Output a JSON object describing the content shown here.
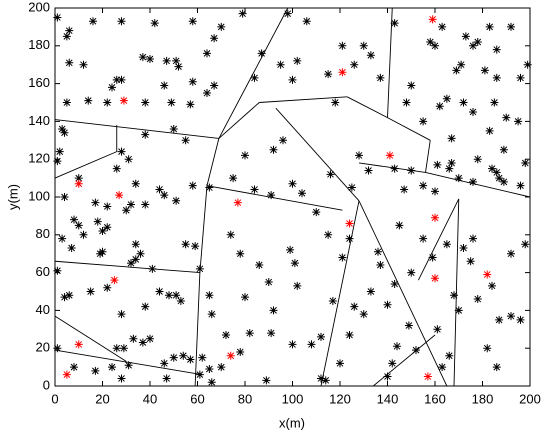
{
  "chart_data": {
    "type": "scatter",
    "xlabel": "x(m)",
    "ylabel": "y(m)",
    "xlim": [
      0,
      200
    ],
    "ylim": [
      0,
      200
    ],
    "xticks": [
      0,
      20,
      40,
      60,
      80,
      100,
      120,
      140,
      160,
      180,
      200
    ],
    "yticks": [
      0,
      20,
      40,
      60,
      80,
      100,
      120,
      140,
      160,
      180,
      200
    ],
    "series": [
      {
        "color": "#000000",
        "x": [
          1,
          6,
          5,
          16,
          28,
          42,
          58,
          70,
          6,
          12,
          37,
          40,
          47,
          51,
          52,
          67,
          64,
          26,
          28,
          24,
          5,
          14,
          22,
          38,
          46,
          49,
          58,
          64,
          67,
          57,
          3,
          4,
          50,
          38,
          55,
          79,
          98,
          87,
          95,
          102,
          106,
          121,
          126,
          130,
          84,
          100,
          115,
          118,
          137,
          143,
          133,
          158,
          163,
          173,
          176,
          178,
          183,
          186,
          192,
          160,
          169,
          171,
          181,
          186,
          196,
          150,
          148,
          165,
          172,
          162,
          190,
          195,
          199,
          176,
          185,
          155,
          167,
          183,
          128,
          132,
          143,
          150,
          147,
          160,
          155,
          161,
          167,
          166,
          170,
          176,
          178,
          184,
          186,
          189,
          187,
          198,
          189,
          196,
          125,
          110,
          116,
          100,
          104,
          92,
          96,
          75,
          80,
          84,
          91,
          2,
          1,
          10,
          28,
          31,
          17,
          26,
          34,
          22,
          30,
          32,
          38,
          44,
          46,
          51,
          58,
          65,
          4,
          8,
          10,
          12,
          22,
          18,
          20,
          3,
          7,
          19,
          20,
          34,
          36,
          34,
          32,
          41,
          55,
          59,
          61,
          74,
          78,
          86,
          90,
          99,
          101,
          102,
          92,
          80,
          65,
          66,
          72,
          82,
          91,
          100,
          108,
          112,
          124,
          117,
          126,
          133,
          130,
          121,
          124,
          115,
          137,
          136,
          145,
          155,
          165,
          172,
          175,
          176,
          159,
          150,
          143,
          140,
          149,
          144,
          152,
          161,
          170,
          168,
          192,
          198,
          178,
          184,
          196,
          192,
          187,
          182,
          186,
          166,
          163,
          140,
          142,
          120,
          114,
          112,
          89,
          78,
          70,
          66,
          61,
          1,
          4,
          6,
          15,
          22,
          28,
          38,
          44,
          48,
          51,
          53,
          33,
          37,
          40,
          46,
          50,
          57,
          29,
          26,
          17,
          1,
          8,
          24,
          31,
          28,
          47,
          54,
          62,
          65
        ],
        "values": [
          195,
          188,
          185,
          193,
          193,
          192,
          193,
          190,
          171,
          170,
          174,
          173,
          172,
          172,
          169,
          184,
          176,
          162,
          162,
          158,
          150,
          151,
          150,
          150,
          159,
          150,
          161,
          155,
          159,
          149,
          136,
          134,
          136,
          133,
          130,
          197,
          197,
          176,
          170,
          172,
          193,
          180,
          170,
          180,
          163,
          162,
          165,
          150,
          163,
          192,
          175,
          182,
          190,
          185,
          180,
          182,
          190,
          178,
          190,
          180,
          167,
          170,
          167,
          163,
          163,
          159,
          150,
          152,
          150,
          148,
          142,
          140,
          170,
          145,
          150,
          140,
          131,
          135,
          122,
          114,
          115,
          114,
          104,
          103,
          106,
          117,
          118,
          115,
          110,
          108,
          120,
          115,
          113,
          125,
          110,
          118,
          108,
          106,
          105,
          92,
          112,
          107,
          102,
          125,
          130,
          110,
          122,
          104,
          101,
          124,
          119,
          110,
          124,
          120,
          97,
          115,
          107,
          95,
          93,
          96,
          96,
          104,
          101,
          98,
          106,
          105,
          100,
          88,
          85,
          80,
          84,
          87,
          82,
          78,
          73,
          70,
          71,
          75,
          70,
          67,
          65,
          62,
          75,
          74,
          62,
          80,
          70,
          64,
          55,
          72,
          65,
          53,
          40,
          47,
          48,
          38,
          27,
          28,
          28,
          22,
          22,
          26,
          27,
          45,
          42,
          50,
          38,
          68,
          78,
          80,
          64,
          71,
          85,
          78,
          75,
          73,
          66,
          78,
          68,
          60,
          54,
          43,
          32,
          21,
          19,
          30,
          40,
          48,
          70,
          75,
          46,
          53,
          35,
          37,
          35,
          20,
          10,
          16,
          10,
          5,
          12,
          12,
          3,
          4,
          3,
          18,
          10,
          2,
          6,
          61,
          47,
          48,
          50,
          52,
          38,
          42,
          50,
          48,
          48,
          45,
          25,
          23,
          25,
          12,
          15,
          14,
          20,
          20,
          8,
          20,
          10,
          10,
          11,
          4,
          4,
          16,
          15,
          9
        ]
      },
      {
        "color": "#ff0000",
        "x": [
          29,
          10,
          27,
          25,
          10,
          5,
          77,
          74,
          121,
          141,
          124,
          160,
          160,
          182,
          159,
          157
        ],
        "values": [
          151,
          107,
          101,
          56,
          22,
          6,
          97,
          16,
          166,
          122,
          86,
          89,
          57,
          59,
          194,
          5
        ]
      }
    ],
    "segments": [
      {
        "x": [
          0,
          69
        ],
        "y": [
          141,
          131
        ]
      },
      {
        "x": [
          69,
          98
        ],
        "y": [
          131,
          200
        ]
      },
      {
        "x": [
          69,
          64
        ],
        "y": [
          131,
          106
        ]
      },
      {
        "x": [
          64,
          61
        ],
        "y": [
          106,
          60
        ]
      },
      {
        "x": [
          61,
          59
        ],
        "y": [
          60,
          0
        ]
      },
      {
        "x": [
          0,
          61
        ],
        "y": [
          66,
          60
        ]
      },
      {
        "x": [
          0,
          30
        ],
        "y": [
          37,
          13
        ]
      },
      {
        "x": [
          0,
          62
        ],
        "y": [
          19,
          6
        ]
      },
      {
        "x": [
          0,
          26
        ],
        "y": [
          110,
          124
        ]
      },
      {
        "x": [
          26,
          26
        ],
        "y": [
          124,
          138
        ]
      },
      {
        "x": [
          64,
          121
        ],
        "y": [
          106,
          93
        ]
      },
      {
        "x": [
          69,
          86
        ],
        "y": [
          131,
          150
        ]
      },
      {
        "x": [
          86,
          123
        ],
        "y": [
          150,
          153
        ]
      },
      {
        "x": [
          123,
          140
        ],
        "y": [
          153,
          142
        ]
      },
      {
        "x": [
          142,
          140
        ],
        "y": [
          200,
          142
        ]
      },
      {
        "x": [
          93,
          128
        ],
        "y": [
          147,
          98
        ]
      },
      {
        "x": [
          128,
          112
        ],
        "y": [
          98,
          0
        ]
      },
      {
        "x": [
          128,
          165
        ],
        "y": [
          98,
          0
        ]
      },
      {
        "x": [
          140,
          158
        ],
        "y": [
          142,
          130
        ]
      },
      {
        "x": [
          158,
          156
        ],
        "y": [
          130,
          113
        ]
      },
      {
        "x": [
          156,
          128
        ],
        "y": [
          113,
          118
        ]
      },
      {
        "x": [
          156,
          200
        ],
        "y": [
          113,
          100
        ]
      },
      {
        "x": [
          170,
          153
        ],
        "y": [
          99,
          56
        ]
      },
      {
        "x": [
          170,
          168
        ],
        "y": [
          99,
          0
        ]
      },
      {
        "x": [
          160,
          134
        ],
        "y": [
          27,
          0
        ]
      }
    ]
  }
}
